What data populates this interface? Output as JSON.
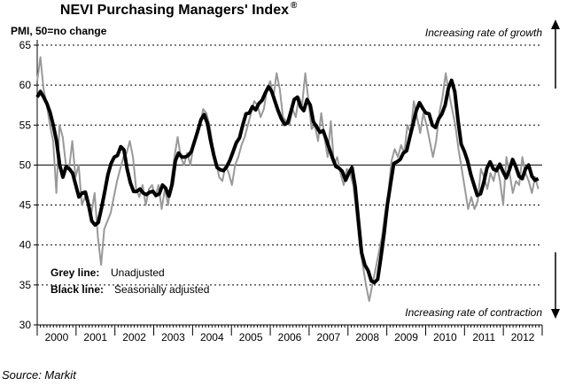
{
  "chart_data": {
    "type": "line",
    "title": "NEVI Purchasing Managers' Index",
    "title_mark": "®",
    "ylabel": "PMI, 50=no change",
    "ylim": [
      30,
      65
    ],
    "yticks": [
      30,
      35,
      40,
      45,
      50,
      55,
      60,
      65
    ],
    "reference_line": 50,
    "annotations": {
      "top": "Increasing rate of growth",
      "bottom": "Increasing rate of contraction"
    },
    "x_start": 2000.0,
    "x_end": 2013.0,
    "year_labels": [
      "2000",
      "2001",
      "2002",
      "2003",
      "2004",
      "2005",
      "2006",
      "2007",
      "2008",
      "2009",
      "2010",
      "2011",
      "2012"
    ],
    "legend": [
      {
        "key": "Grey line:",
        "label": "Unadjusted",
        "color": "#999999"
      },
      {
        "key": "Black line:",
        "label": "Seasonally adjusted",
        "color": "#000000"
      }
    ],
    "series": [
      {
        "name": "Unadjusted",
        "color": "#999999",
        "values": [
          60.5,
          63.5,
          59.5,
          57.5,
          55,
          53,
          46.5,
          55,
          53.5,
          50,
          49.5,
          53,
          48.5,
          50,
          45,
          46,
          45,
          44,
          46.5,
          41,
          37.5,
          42,
          43,
          44,
          46,
          48,
          49.5,
          51,
          51.5,
          53,
          51,
          47,
          46,
          47.5,
          45,
          47,
          47.5,
          46,
          47.5,
          44.5,
          47,
          45,
          48,
          51,
          53.5,
          51,
          50,
          51.5,
          50,
          52.5,
          53.5,
          55,
          57,
          56.5,
          55,
          52.5,
          50.5,
          48.5,
          48,
          50,
          49,
          47.5,
          50,
          51,
          52.5,
          53.5,
          55,
          56.5,
          58,
          57.5,
          56,
          57,
          59.5,
          60.5,
          58.5,
          61.5,
          59.5,
          56,
          55.5,
          55,
          57,
          56,
          58.5,
          57.5,
          61.5,
          58,
          54.5,
          55,
          53,
          56.5,
          53.5,
          51,
          55.5,
          50,
          51,
          49,
          47.5,
          49.5,
          49,
          47.5,
          44,
          40,
          37.5,
          35,
          33,
          35,
          37,
          39,
          41,
          44,
          46.5,
          50.5,
          52,
          51,
          52.5,
          51.5,
          55,
          54,
          58,
          56,
          54,
          56.5,
          55,
          53,
          51,
          53,
          56.5,
          58.5,
          61.5,
          59,
          57,
          55,
          52,
          49.5,
          47,
          44.5,
          46,
          44.5,
          45.5,
          49.5,
          48.5,
          47,
          49,
          48,
          50,
          48,
          45,
          51,
          49,
          46.5,
          48,
          47.5,
          51,
          49,
          48,
          46.5,
          48.5,
          47
        ]
      },
      {
        "name": "Seasonally adjusted",
        "color": "#000000",
        "values": [
          58.5,
          59.2,
          58.5,
          57.7,
          56.6,
          55,
          53,
          50,
          48.5,
          49.8,
          49.5,
          49,
          47.5,
          46,
          46.5,
          46.6,
          45,
          43,
          42.5,
          42.8,
          44.6,
          46.6,
          48.8,
          50.2,
          51,
          51.2,
          52.3,
          51.9,
          49.5,
          47.8,
          46.7,
          46.7,
          47,
          46.5,
          46.3,
          46.6,
          46.7,
          46.2,
          46.4,
          47.5,
          47.1,
          46.1,
          47.6,
          50.5,
          51.5,
          51,
          51,
          51.2,
          51.7,
          53,
          54.3,
          55.7,
          56.3,
          55.2,
          53,
          51.2,
          49.7,
          49.4,
          49.3,
          49.8,
          50.6,
          51.7,
          52.8,
          53.4,
          55,
          56.4,
          56.5,
          57.3,
          56.9,
          57.7,
          58.1,
          59,
          59.8,
          59.2,
          58,
          56.8,
          55.8,
          55.1,
          55.3,
          56.7,
          58.2,
          58.5,
          57.3,
          56.8,
          58.2,
          57.5,
          55.4,
          54.8,
          54.1,
          54.3,
          53.2,
          52,
          50.8,
          49.8,
          49.6,
          49.2,
          48.1,
          49,
          49.7,
          47.3,
          43,
          39,
          37.5,
          36.8,
          35.5,
          35.3,
          35.7,
          38.5,
          41.5,
          45,
          47.6,
          50.2,
          50.4,
          50.7,
          51.5,
          51.8,
          53.5,
          55.1,
          56.8,
          57.8,
          57.1,
          56.5,
          56.4,
          55,
          54.7,
          55.8,
          56.4,
          57.5,
          59.6,
          60.6,
          59.2,
          55.6,
          52.6,
          51.7,
          50.5,
          48.8,
          47.5,
          46.2,
          46.4,
          47.8,
          49.6,
          50.4,
          49.5,
          49.3,
          50.1,
          49.2,
          48.4,
          49.4,
          50.7,
          49.8,
          48.6,
          48.3,
          49.5,
          50,
          48.6,
          48.1,
          48.3
        ]
      }
    ]
  },
  "source": "Source: Markit"
}
